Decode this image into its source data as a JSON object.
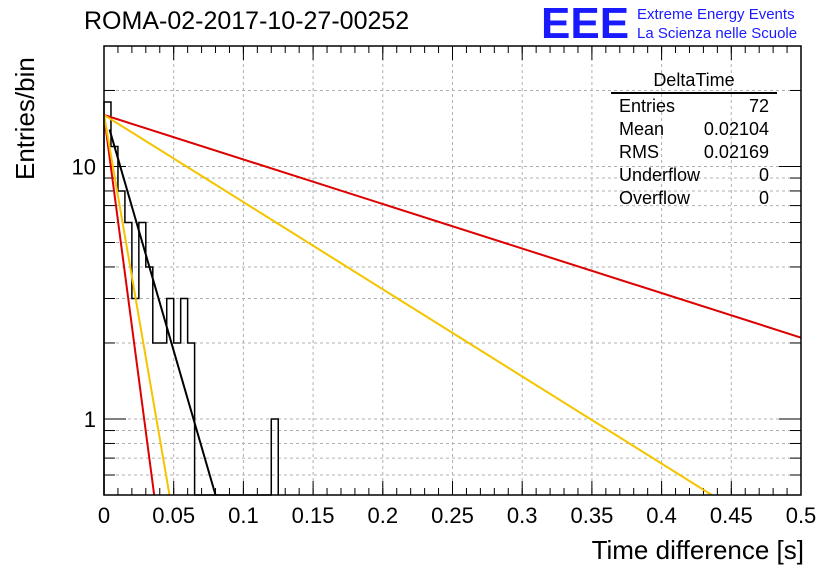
{
  "title": "ROMA-02-2017-10-27-00252",
  "logo": {
    "mark": "EEE",
    "line1": "Extreme Energy Events",
    "line2": "La Scienza nelle Scuole",
    "color": "#1a1aff"
  },
  "stats": {
    "name": "DeltaTime",
    "rows": [
      {
        "label": "Entries",
        "value": "72"
      },
      {
        "label": "Mean",
        "value": "0.02104"
      },
      {
        "label": "RMS",
        "value": "0.02169"
      },
      {
        "label": "Underflow",
        "value": "0"
      },
      {
        "label": "Overflow",
        "value": "0"
      }
    ]
  },
  "chart_data": {
    "type": "line",
    "xlabel": "Time difference [s]",
    "ylabel": "Entries/bin",
    "xlim": [
      0,
      0.5
    ],
    "ylim": [
      0.5,
      30
    ],
    "yscale": "log",
    "grid": true,
    "x_ticks": [
      "0",
      "0.05",
      "0.1",
      "0.15",
      "0.2",
      "0.25",
      "0.3",
      "0.35",
      "0.4",
      "0.45",
      "0.5"
    ],
    "y_ticks": [
      "1",
      "10"
    ],
    "histogram": {
      "bin_width": 0.005,
      "color": "#000000",
      "counts": [
        18,
        12,
        8,
        6,
        3,
        6,
        4,
        2,
        2,
        3,
        2,
        3,
        2,
        0,
        0,
        0,
        0,
        0,
        0,
        0,
        0,
        0,
        0,
        0,
        1
      ]
    },
    "series": [
      {
        "color": "#000000",
        "x": [
          0.004,
          0.08
        ],
        "y": [
          14,
          0.5
        ]
      },
      {
        "color": "#dd0000",
        "x": [
          0.0,
          0.5
        ],
        "y": [
          16,
          2.1
        ]
      },
      {
        "color": "#f5c400",
        "x": [
          0.0,
          0.436
        ],
        "y": [
          16,
          0.5
        ]
      },
      {
        "color": "#dd0000",
        "x": [
          0.0,
          0.036
        ],
        "y": [
          16,
          0.5
        ]
      },
      {
        "color": "#f5c400",
        "x": [
          0.0,
          0.047
        ],
        "y": [
          16,
          0.5
        ]
      }
    ]
  }
}
